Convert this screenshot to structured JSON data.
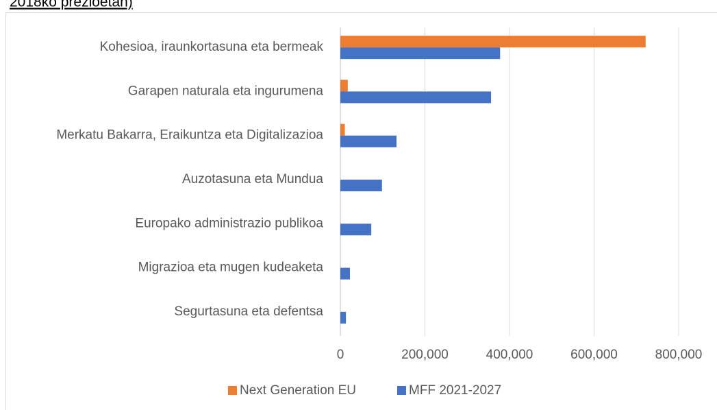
{
  "caption": "2018ko prezioetan)",
  "chart_data": {
    "type": "hbar",
    "categories": [
      "Kohesioa, iraunkortasuna eta bermeak",
      "Garapen naturala eta ingurumena",
      "Merkatu Bakarra, Eraikuntza eta Digitalizazioa",
      "Auzotasuna eta Mundua",
      "Europako administrazio publikoa",
      "Migrazioa eta mugen kudeaketa",
      "Segurtasuna eta defentsa"
    ],
    "series": [
      {
        "name": "Next Generation EU",
        "color": "#ed7d31",
        "values": [
          721900,
          17500,
          10600,
          0,
          0,
          0,
          0
        ]
      },
      {
        "name": "MFF 2021-2027",
        "color": "#4472c4",
        "values": [
          377768,
          356374,
          132781,
          98419,
          73102,
          22671,
          13185
        ]
      }
    ],
    "xlim": [
      0,
      800000
    ],
    "xticks": [
      0,
      {
        "value": 200000,
        "label": "200,000"
      },
      {
        "value": 400000,
        "label": "400,000"
      },
      {
        "value": 600000,
        "label": "600,000"
      },
      {
        "value": 800000,
        "label": "800,000"
      }
    ],
    "grid": true,
    "legend": "bottom"
  }
}
